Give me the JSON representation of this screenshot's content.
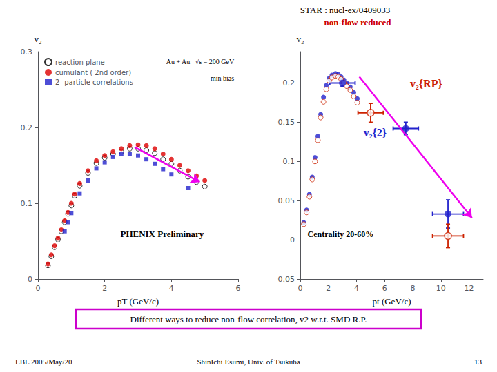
{
  "title": "STAR : nucl-ex/0409033",
  "annotations": [
    {
      "text": "non-flow reduced",
      "color": "#cc0000"
    },
    {
      "text": "Different ways to reduce non-flow correlation, v2 w.r.t. SMD R.P.",
      "color": "#cc00cc"
    },
    {
      "text": "LBL 2005/May/20"
    },
    {
      "text": "ShinIchi Esumi, Univ. of Tsukuba"
    },
    {
      "text": "13"
    }
  ],
  "chart_data": [
    {
      "type": "scatter",
      "xlabel": "pT (GeV/c)",
      "ylabel": "v₂",
      "xlim": [
        0,
        6
      ],
      "ylim": [
        0,
        0.3
      ],
      "xticks": [
        0,
        2,
        4,
        6
      ],
      "yticks": [
        0,
        0.1,
        0.2,
        0.3
      ],
      "grid": false,
      "legend": "upper left",
      "series": [
        {
          "name": "reaction plane",
          "color": "#000000",
          "marker": "open_circle",
          "x": [
            0.3,
            0.4,
            0.5,
            0.6,
            0.7,
            0.8,
            0.9,
            1.0,
            1.1,
            1.25,
            1.5,
            1.75,
            2.0,
            2.25,
            2.5,
            2.75,
            3.0,
            3.25,
            3.5,
            3.75,
            4.0,
            4.25,
            4.5,
            4.75,
            5.0
          ],
          "values": [
            0.018,
            0.03,
            0.042,
            0.052,
            0.063,
            0.075,
            0.086,
            0.097,
            0.11,
            0.123,
            0.14,
            0.153,
            0.16,
            0.165,
            0.168,
            0.172,
            0.172,
            0.17,
            0.166,
            0.158,
            0.152,
            0.143,
            0.135,
            0.128,
            0.122
          ]
        },
        {
          "name": "cumulant ( 2nd order)",
          "color": "#dd0000",
          "marker": "circle",
          "x": [
            0.3,
            0.4,
            0.5,
            0.6,
            0.7,
            0.8,
            0.9,
            1.0,
            1.1,
            1.25,
            1.5,
            1.75,
            2.0,
            2.25,
            2.5,
            2.75,
            3.0,
            3.25,
            3.5,
            3.75,
            4.0,
            4.25,
            4.5,
            4.75,
            5.0
          ],
          "values": [
            0.02,
            0.032,
            0.044,
            0.054,
            0.065,
            0.077,
            0.088,
            0.1,
            0.112,
            0.126,
            0.143,
            0.156,
            0.163,
            0.168,
            0.172,
            0.176,
            0.177,
            0.176,
            0.172,
            0.165,
            0.158,
            0.15,
            0.143,
            0.136,
            0.13
          ]
        },
        {
          "name": "2 -particle correlations",
          "color": "#2222cc",
          "marker": "square",
          "x": [
            0.8,
            0.9,
            1.0,
            1.25,
            1.5,
            1.75,
            2.0,
            2.25,
            2.5,
            2.75,
            3.0,
            3.25,
            3.5,
            3.75,
            4.0,
            4.5
          ],
          "values": [
            0.063,
            0.075,
            0.087,
            0.113,
            0.13,
            0.146,
            0.154,
            0.161,
            0.165,
            0.165,
            0.163,
            0.158,
            0.152,
            0.145,
            0.138,
            0.12
          ]
        }
      ],
      "annotations": [
        {
          "text": "Au + Au   √s = 200 GeV"
        },
        {
          "text": "min bias"
        },
        {
          "text": "PHENIX Preliminary"
        },
        {
          "arrow_from": [
            2.9,
            0.174
          ],
          "arrow_to": [
            4.85,
            0.128
          ],
          "color": "#ee00ee"
        }
      ]
    },
    {
      "type": "scatter",
      "xlabel": "pt (GeV/c)",
      "ylabel": "v₂",
      "xlim": [
        0,
        13
      ],
      "ylim": [
        -0.05,
        0.24
      ],
      "xticks": [
        0,
        2,
        4,
        6,
        8,
        10,
        12
      ],
      "yticks": [
        -0.05,
        0,
        0.05,
        0.1,
        0.15,
        0.2
      ],
      "grid": false,
      "series": [
        {
          "color": "#2222cc",
          "marker": "circle",
          "x": [
            0.25,
            0.45,
            0.65,
            0.85,
            1.05,
            1.25,
            1.45,
            1.65,
            1.85,
            2.05,
            2.25,
            2.5,
            2.7,
            2.9,
            3.1,
            3.3,
            3.55,
            3.8,
            4.05
          ],
          "values": [
            0.022,
            0.038,
            0.058,
            0.08,
            0.105,
            0.132,
            0.16,
            0.182,
            0.197,
            0.206,
            0.21,
            0.212,
            0.211,
            0.208,
            0.204,
            0.2,
            0.195,
            0.188,
            0.18
          ]
        },
        {
          "color": "#cc2200",
          "marker": "open_circle",
          "x": [
            0.25,
            0.45,
            0.65,
            0.85,
            1.05,
            1.25,
            1.45,
            1.65,
            1.85,
            2.05,
            2.25,
            2.5,
            2.7,
            2.9,
            3.1,
            3.3,
            3.55,
            3.8,
            4.05
          ],
          "values": [
            0.02,
            0.035,
            0.055,
            0.077,
            0.1,
            0.127,
            0.156,
            0.176,
            0.192,
            0.203,
            0.207,
            0.209,
            0.208,
            0.205,
            0.2,
            0.196,
            0.191,
            0.183,
            0.175
          ]
        },
        {
          "color": "#2222cc",
          "marker": "circle",
          "x": [
            3.0,
            7.5,
            10.5
          ],
          "values": [
            0.2,
            0.142,
            0.033
          ],
          "xerr": [
            0.9,
            0.9,
            1.1
          ],
          "yerr": [
            0.004,
            0.008,
            0.018
          ]
        },
        {
          "color": "#cc2200",
          "marker": "open_circle",
          "x": [
            5.0,
            10.5
          ],
          "values": [
            0.162,
            0.005
          ],
          "xerr": [
            0.9,
            1.1
          ],
          "yerr": [
            0.012,
            0.015
          ]
        }
      ],
      "annotations": [
        {
          "text": "v₂{RP}",
          "x": 7.8,
          "y": 0.192,
          "color": "#cc2200"
        },
        {
          "text": "v₂{2}",
          "x": 4.5,
          "y": 0.13,
          "color": "#2222cc"
        },
        {
          "text": "Centrality 20-60%"
        },
        {
          "arrow_from": [
            4.2,
            0.208
          ],
          "arrow_to": [
            12.2,
            0.028
          ],
          "color": "#ee00ee"
        }
      ]
    }
  ]
}
